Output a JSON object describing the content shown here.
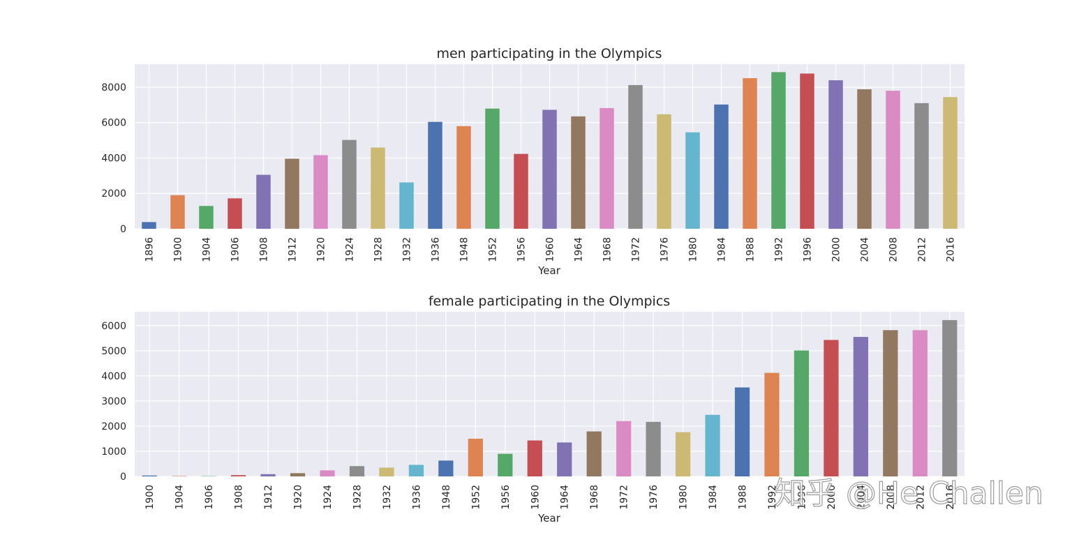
{
  "chart_data": [
    {
      "type": "bar",
      "title": "men participating in the Olympics",
      "xlabel": "Year",
      "ylabel": "",
      "ylim": [
        0,
        9300
      ],
      "yticks": [
        0,
        2000,
        4000,
        6000,
        8000
      ],
      "grid": true,
      "categories": [
        "1896",
        "1900",
        "1904",
        "1906",
        "1908",
        "1912",
        "1920",
        "1924",
        "1928",
        "1932",
        "1936",
        "1948",
        "1952",
        "1956",
        "1960",
        "1964",
        "1968",
        "1972",
        "1976",
        "1980",
        "1984",
        "1988",
        "1992",
        "1996",
        "2000",
        "2004",
        "2008",
        "2012",
        "2016"
      ],
      "values": [
        380,
        1900,
        1290,
        1720,
        3050,
        3960,
        4160,
        5020,
        4590,
        2620,
        6040,
        5800,
        6790,
        4230,
        6720,
        6350,
        6820,
        8120,
        6470,
        5450,
        7020,
        8510,
        8850,
        8770,
        8390,
        7880,
        7800,
        7100,
        7440
      ]
    },
    {
      "type": "bar",
      "title": "female participating in the Olympics",
      "xlabel": "Year",
      "ylabel": "",
      "ylim": [
        0,
        6550
      ],
      "yticks": [
        0,
        1000,
        2000,
        3000,
        4000,
        5000,
        6000
      ],
      "grid": true,
      "categories": [
        "1900",
        "1904",
        "1906",
        "1908",
        "1912",
        "1920",
        "1924",
        "1928",
        "1932",
        "1936",
        "1948",
        "1952",
        "1956",
        "1960",
        "1964",
        "1968",
        "1972",
        "1976",
        "1980",
        "1984",
        "1988",
        "1992",
        "1996",
        "2000",
        "2004",
        "2008",
        "2012",
        "2016"
      ],
      "values": [
        35,
        16,
        11,
        50,
        90,
        130,
        240,
        410,
        350,
        460,
        630,
        1500,
        900,
        1430,
        1350,
        1790,
        2200,
        2170,
        1760,
        2450,
        3540,
        4120,
        5010,
        5430,
        5550,
        5820,
        5820,
        6220
      ]
    }
  ],
  "palette": [
    "#4c72b0",
    "#dd8452",
    "#55a868",
    "#c44e52",
    "#8172b3",
    "#937860",
    "#da8bc3",
    "#8c8c8c",
    "#ccb974",
    "#64b5cd"
  ],
  "styles": {
    "axes_bg": "#eaeaf2",
    "grid_color": "#ffffff",
    "text_color": "#262626"
  },
  "watermark": {
    "text": "知乎 @He Challen"
  }
}
